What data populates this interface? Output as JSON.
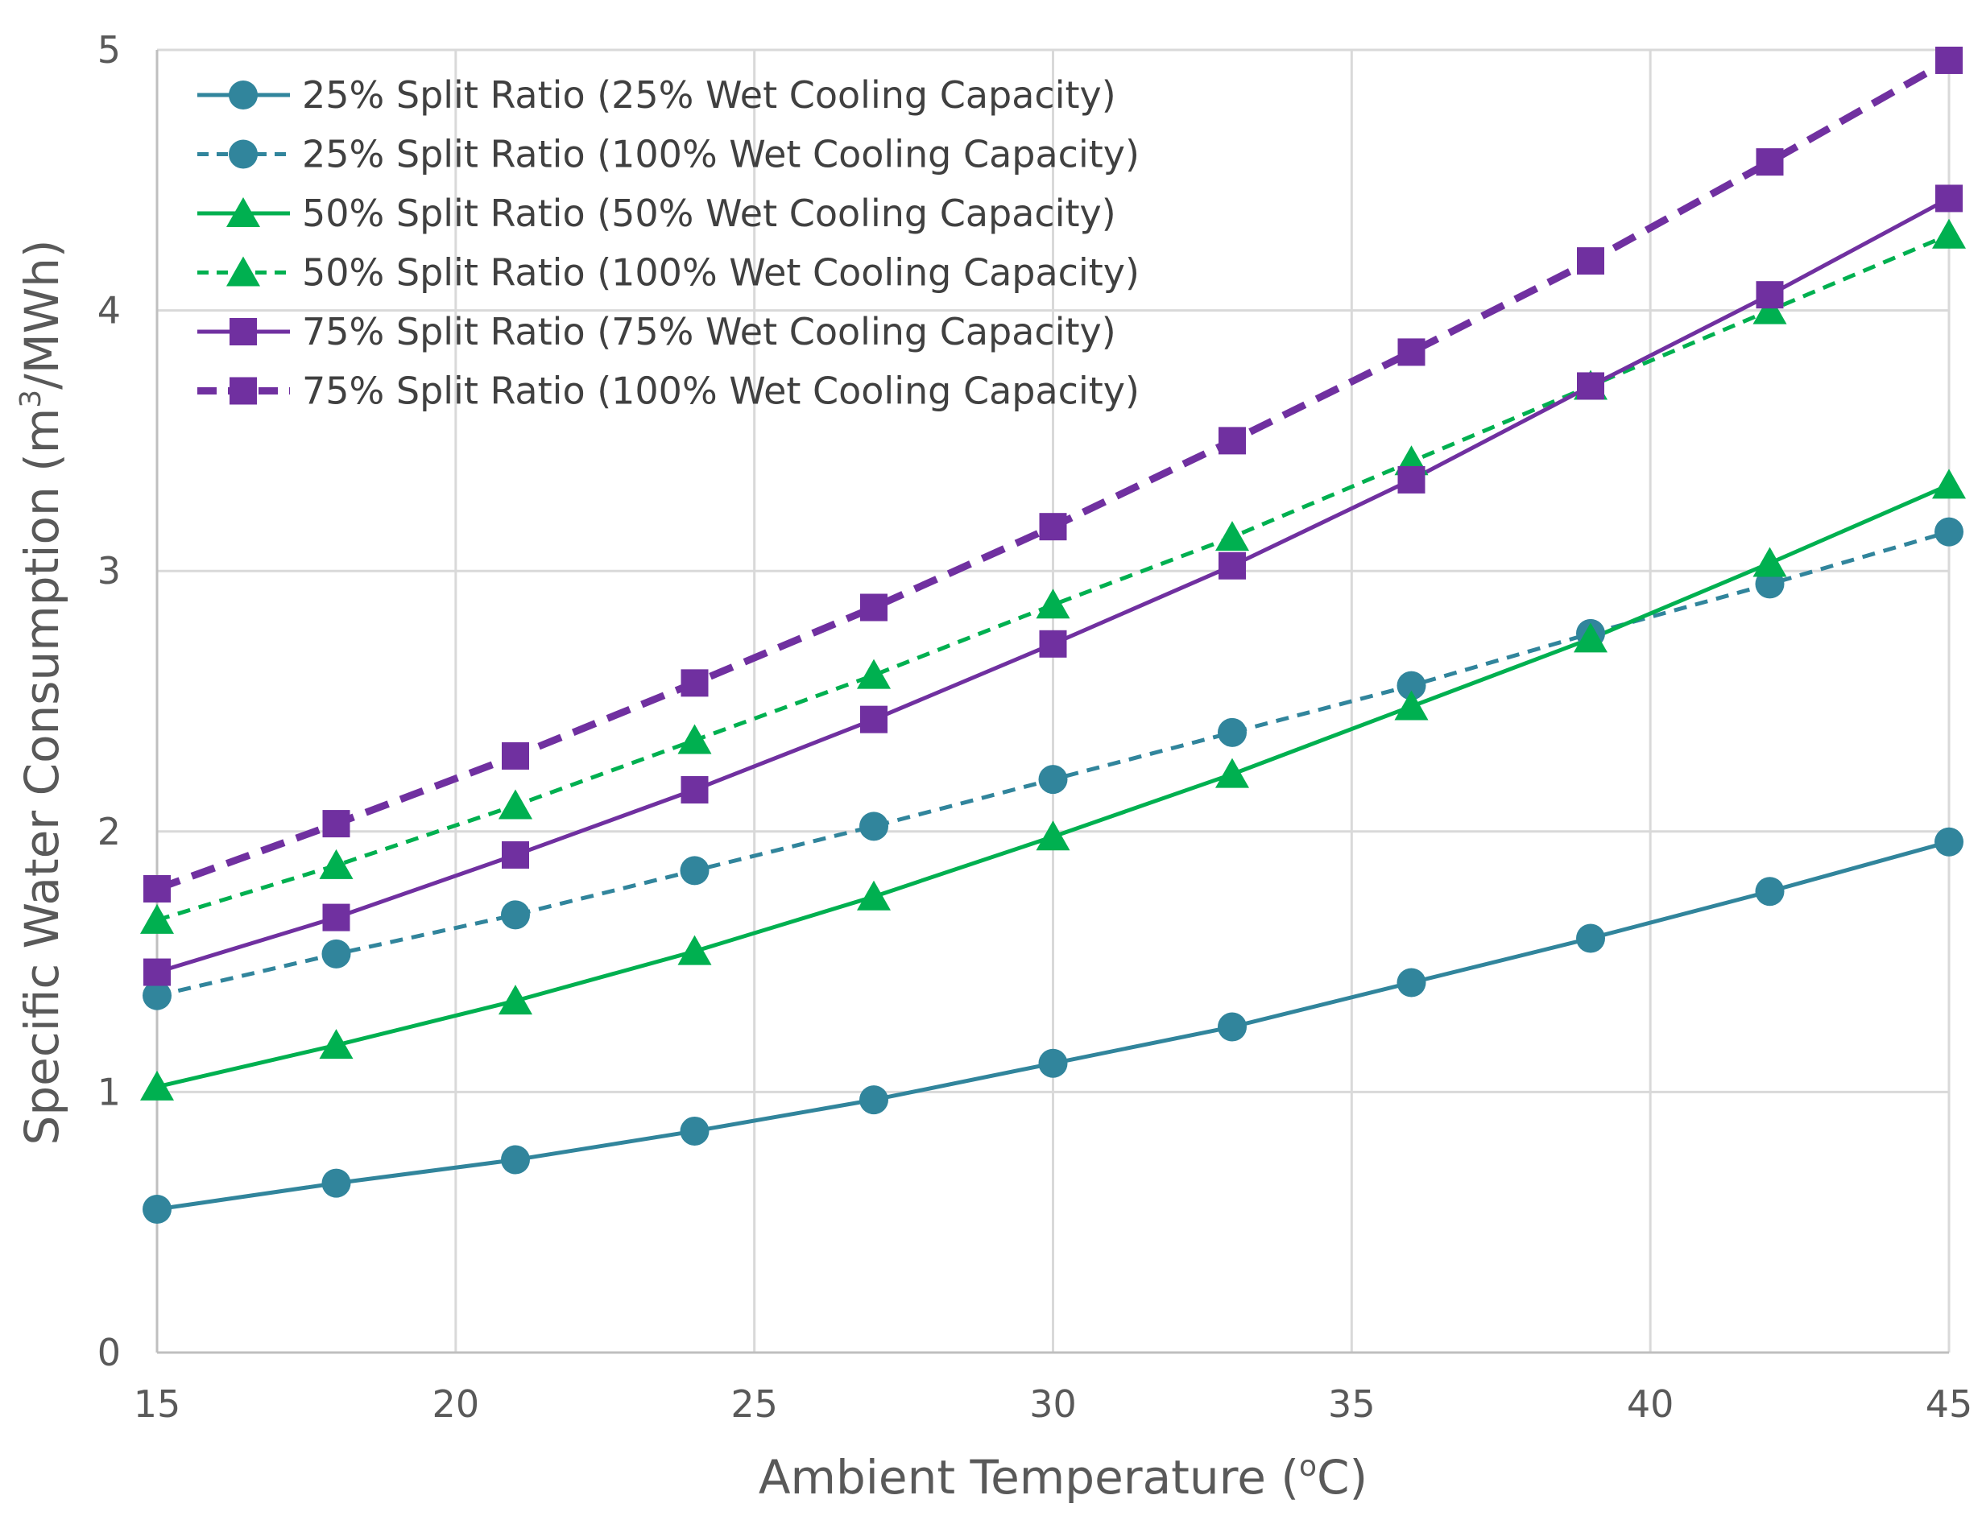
{
  "chart_data": {
    "type": "line",
    "title": "",
    "xlabel": "Ambient Temperature (",
    "xlabel_sup": "o",
    "xlabel_end": "C)",
    "ylabel": "Specific Water Consumption (m",
    "ylabel_sup": "3",
    "ylabel_end": "/MWh)",
    "xlim": [
      15,
      45
    ],
    "ylim": [
      0,
      5
    ],
    "xticks": [
      "15",
      "20",
      "25",
      "30",
      "35",
      "40",
      "45"
    ],
    "yticks": [
      "0",
      "1",
      "2",
      "3",
      "4",
      "5"
    ],
    "grid": true,
    "legend_position": "top-left",
    "x": [
      15,
      18,
      21,
      24,
      27,
      30,
      33,
      36,
      39,
      42,
      45
    ],
    "series": [
      {
        "name": "25% Split Ratio (25% Wet Cooling Capacity)",
        "color": "#31859c",
        "marker": "circle",
        "dash": "solid",
        "values": [
          0.55,
          0.65,
          0.74,
          0.85,
          0.97,
          1.11,
          1.25,
          1.42,
          1.59,
          1.77,
          1.96
        ]
      },
      {
        "name": "25% Split Ratio (100% Wet Cooling Capacity)",
        "color": "#31859c",
        "marker": "circle",
        "dash": "dashed",
        "values": [
          1.37,
          1.53,
          1.68,
          1.85,
          2.02,
          2.2,
          2.38,
          2.56,
          2.76,
          2.95,
          3.15
        ]
      },
      {
        "name": "50% Split Ratio (50% Wet Cooling Capacity)",
        "color": "#00b050",
        "marker": "triangle",
        "dash": "solid",
        "values": [
          1.02,
          1.18,
          1.35,
          1.54,
          1.75,
          1.98,
          2.22,
          2.48,
          2.74,
          3.03,
          3.33
        ]
      },
      {
        "name": "50% Split Ratio (100% Wet Cooling Capacity)",
        "color": "#00b050",
        "marker": "triangle",
        "dash": "dashed",
        "values": [
          1.66,
          1.87,
          2.1,
          2.35,
          2.6,
          2.87,
          3.13,
          3.42,
          3.71,
          4.0,
          4.29
        ]
      },
      {
        "name": "75% Split Ratio (75% Wet Cooling Capacity)",
        "color": "#7030a0",
        "marker": "square",
        "dash": "solid",
        "values": [
          1.46,
          1.67,
          1.91,
          2.16,
          2.43,
          2.72,
          3.02,
          3.35,
          3.71,
          4.06,
          4.43
        ]
      },
      {
        "name": "75% Split Ratio (100% Wet Cooling Capacity)",
        "color": "#7030a0",
        "marker": "square",
        "dash": "bold-dashed",
        "values": [
          1.78,
          2.03,
          2.29,
          2.57,
          2.86,
          3.17,
          3.5,
          3.84,
          4.19,
          4.57,
          4.96
        ]
      }
    ]
  }
}
